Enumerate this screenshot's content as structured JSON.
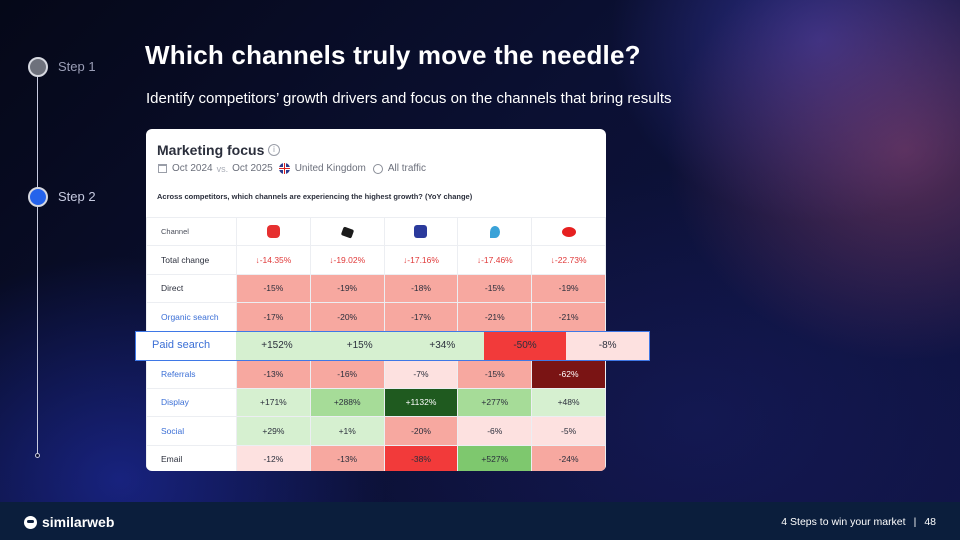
{
  "slide": {
    "title": "Which channels truly move the needle?",
    "subtitle": "Identify competitors’ growth drivers and focus on the channels that bring results"
  },
  "steps": [
    {
      "label": "Step 1",
      "active": false
    },
    {
      "label": "Step 2",
      "active": true
    }
  ],
  "card": {
    "title": "Marketing focus",
    "info_icon": "info-icon",
    "filters": {
      "date_from": "Oct 2024",
      "vs": "vs.",
      "date_to": "Oct 2025",
      "country": "United Kingdom",
      "traffic": "All traffic"
    },
    "question": "Across competitors, which channels are experiencing the highest growth? (YoY change)",
    "header": {
      "channel": "Channel",
      "competitor_logos": [
        "red-bank-logo",
        "black-horse-logo",
        "blue-shield-logo",
        "blue-eagle-logo",
        "red-hexagon-logo"
      ]
    },
    "total_change": {
      "label": "Total change",
      "values": [
        "↓-14.35%",
        "↓-19.02%",
        "↓-17.16%",
        "↓-17.46%",
        "↓-22.73%"
      ]
    },
    "rows": [
      {
        "label": "Direct",
        "link": false,
        "values": [
          "-15%",
          "-19%",
          "-18%",
          "-15%",
          "-19%"
        ],
        "colors": [
          "#f7a8a0",
          "#f7a8a0",
          "#f7a8a0",
          "#f7a8a0",
          "#f7a8a0"
        ]
      },
      {
        "label": "Organic search",
        "link": true,
        "values": [
          "-17%",
          "-20%",
          "-17%",
          "-21%",
          "-21%"
        ],
        "colors": [
          "#f7a8a0",
          "#f7a8a0",
          "#f7a8a0",
          "#f7a8a0",
          "#f7a8a0"
        ]
      },
      {
        "label": "Referrals",
        "link": true,
        "values": [
          "-13%",
          "-16%",
          "-7%",
          "-15%",
          "-62%"
        ],
        "colors": [
          "#f7a8a0",
          "#f7a8a0",
          "#fde1e0",
          "#f7a8a0",
          "#7a1414"
        ]
      },
      {
        "label": "Display",
        "link": true,
        "values": [
          "+171%",
          "+288%",
          "+1132%",
          "+277%",
          "+48%"
        ],
        "colors": [
          "#d6f0d0",
          "#a6dc98",
          "#1f5a1f",
          "#a6dc98",
          "#d6f0d0"
        ]
      },
      {
        "label": "Social",
        "link": true,
        "values": [
          "+29%",
          "+1%",
          "-20%",
          "-6%",
          "-5%"
        ],
        "colors": [
          "#d6f0d0",
          "#d6f0d0",
          "#f7a8a0",
          "#fde1e0",
          "#fde1e0"
        ]
      },
      {
        "label": "Email",
        "link": false,
        "values": [
          "-12%",
          "-13%",
          "-38%",
          "+527%",
          "-24%"
        ],
        "colors": [
          "#fde1e0",
          "#f7a8a0",
          "#f23a3a",
          "#7ec86e",
          "#f7a8a0"
        ]
      }
    ]
  },
  "highlight_row": {
    "label": "Paid search",
    "values": [
      "+152%",
      "+15%",
      "+34%",
      "-50%",
      "-8%"
    ],
    "colors": [
      "#d6f0d0",
      "#d6f0d0",
      "#d6f0d0",
      "#f23a3a",
      "#fde1e0"
    ]
  },
  "footer": {
    "brand": "similarweb",
    "text": "4 Steps to win your market",
    "separator": "|",
    "page_number": "48"
  }
}
